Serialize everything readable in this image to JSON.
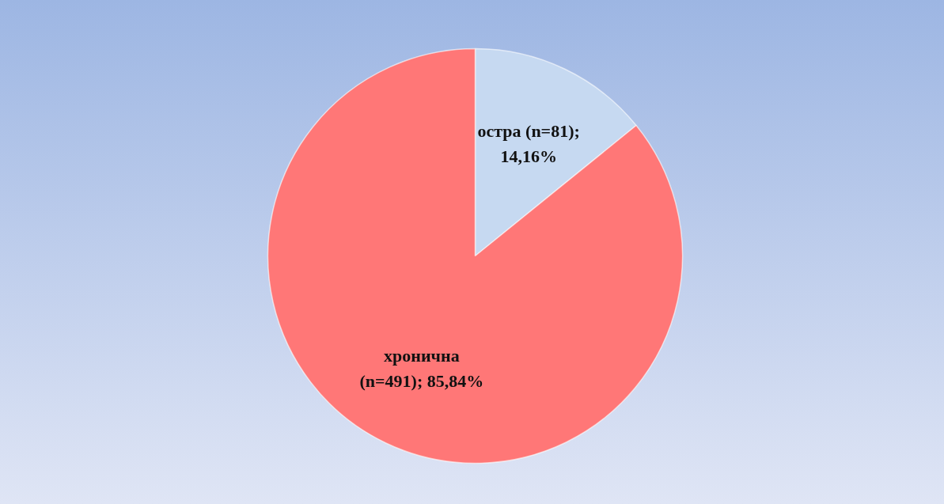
{
  "chart_data": {
    "type": "pie",
    "categories": [
      "остра",
      "хронична"
    ],
    "values": [
      14.16,
      85.84
    ],
    "value_labels": [
      "(n=81); 14,16%",
      "(n=491); 85,84%"
    ],
    "colors": [
      "#c6d9f1",
      "#ff7777"
    ]
  }
}
